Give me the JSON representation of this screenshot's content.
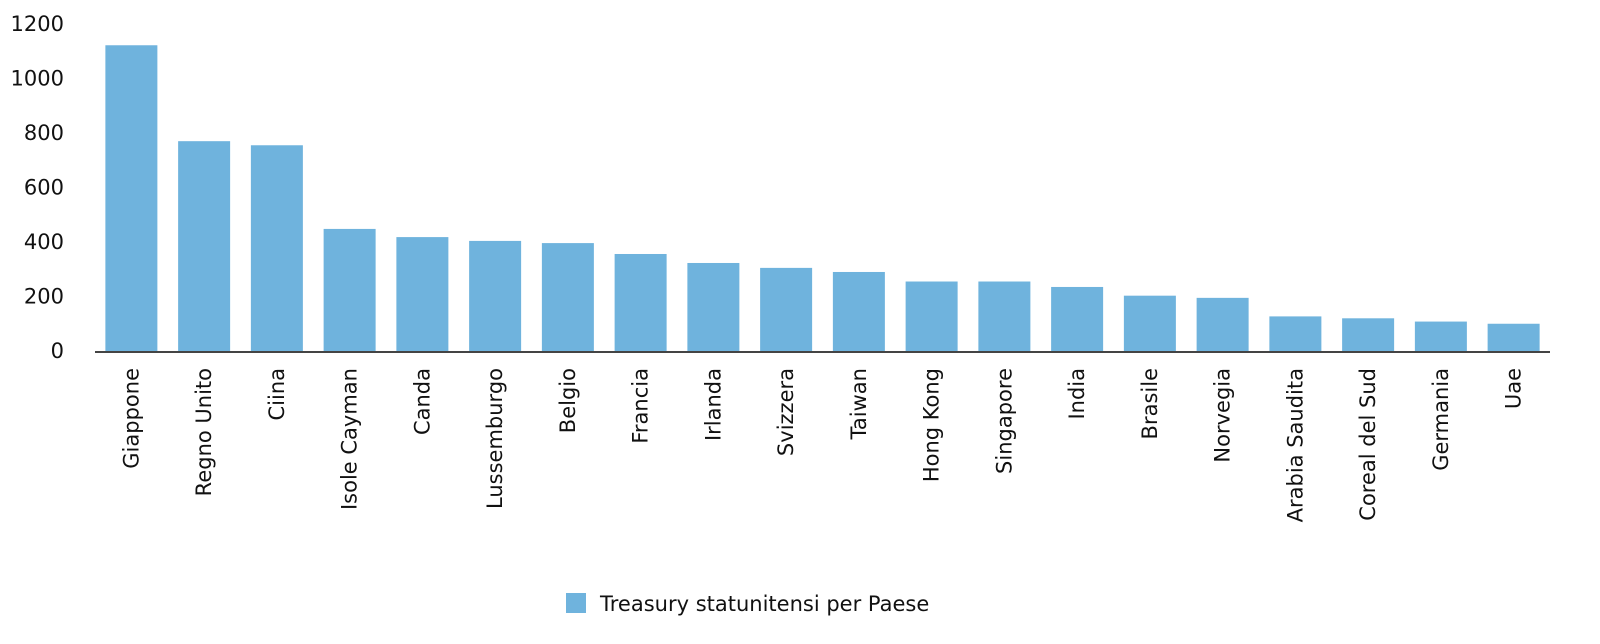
{
  "chart_data": {
    "type": "bar",
    "title": "",
    "xlabel": "",
    "ylabel": "",
    "ylim": [
      0,
      1200
    ],
    "yticks": [
      0,
      200,
      400,
      600,
      800,
      1000,
      1200
    ],
    "grid": false,
    "legend_position": "bottom",
    "bar_color": "#6fb3dd",
    "categories": [
      "Giappone",
      "Regno Unito",
      "Ciina",
      "Isole Cayman",
      "Canda",
      "Lussemburgo",
      "Belgio",
      "Francia",
      "Irlanda",
      "Svizzera",
      "Taiwan",
      "Hong Kong",
      "Singapore",
      "India",
      "Brasile",
      "Norvegia",
      "Arabia Saudita",
      "Coreal del Sud",
      "Germania",
      "Uae"
    ],
    "series": [
      {
        "name": "Treasury statunitensi per Paese",
        "values": [
          1122,
          770,
          755,
          448,
          418,
          404,
          396,
          356,
          323,
          305,
          290,
          255,
          255,
          235,
          203,
          195,
          127,
          120,
          108,
          100
        ]
      }
    ]
  }
}
